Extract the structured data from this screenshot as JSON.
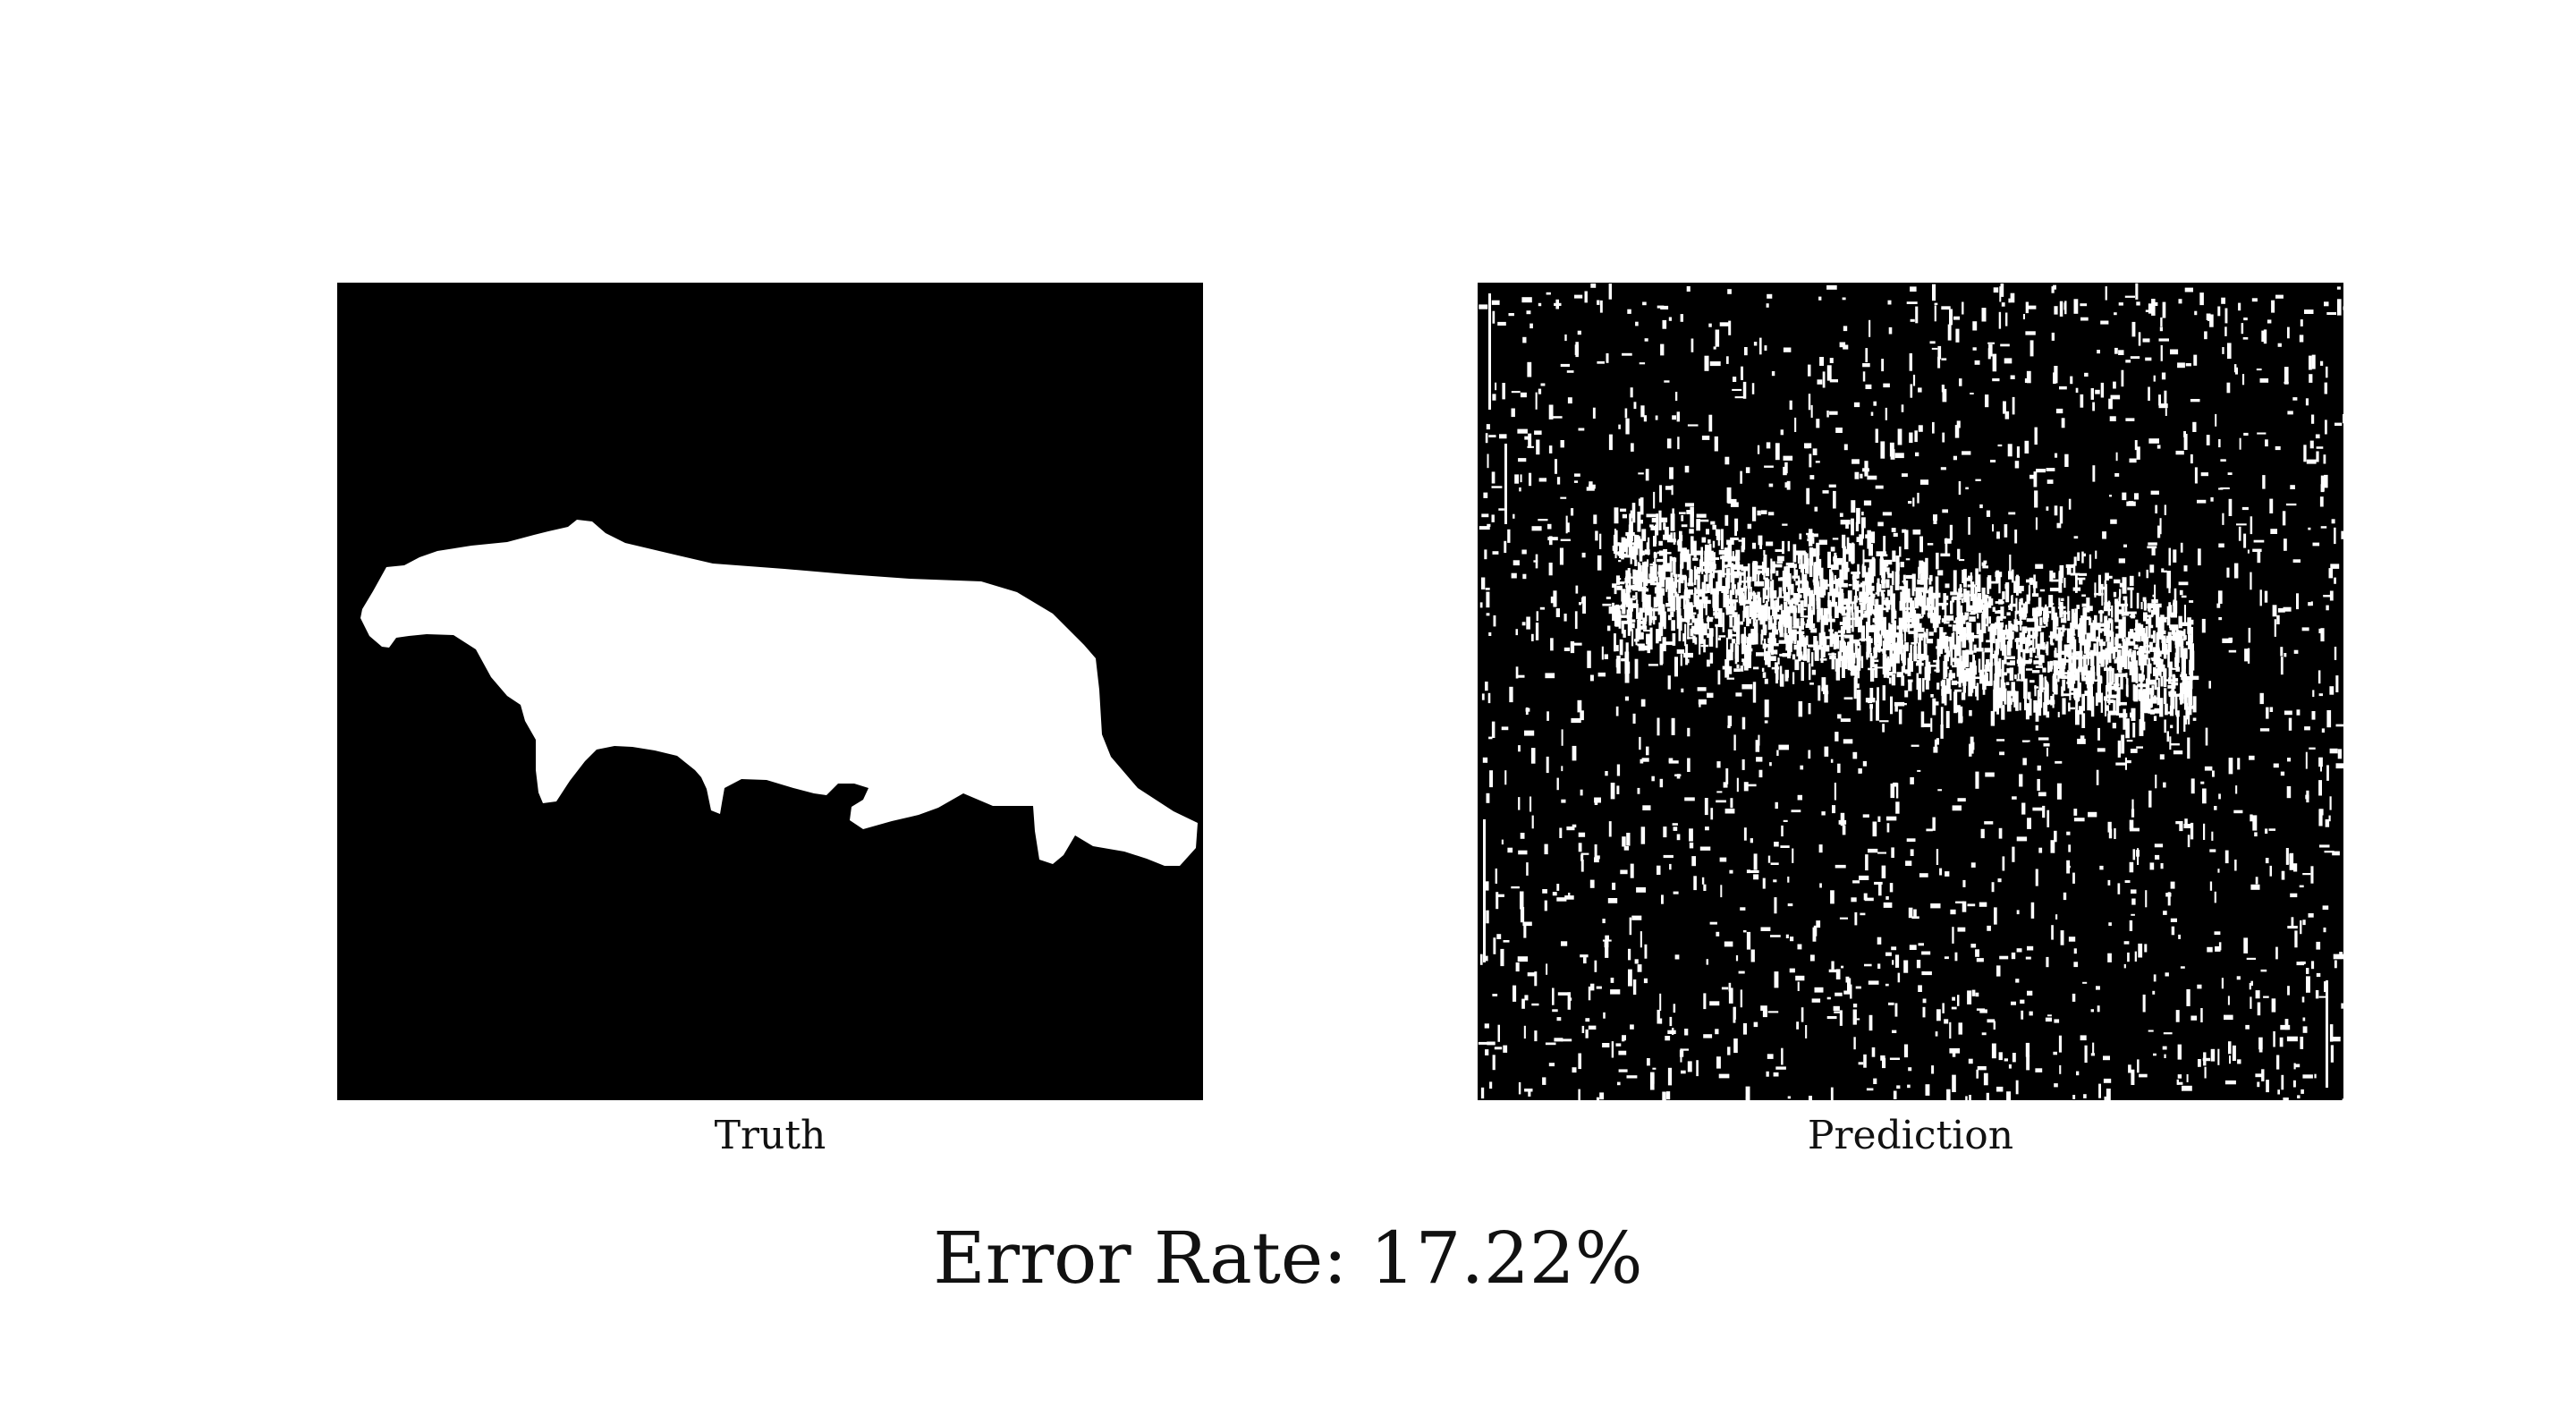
{
  "panels": {
    "truth": {
      "caption": "Truth",
      "image_desc": "binary-mask"
    },
    "prediction": {
      "caption": "Prediction",
      "image_desc": "noisy-binary-mask"
    }
  },
  "error_rate_text": "Error Rate: 17.22%",
  "colors": {
    "background": "#ffffff",
    "mask_foreground": "#ffffff",
    "mask_background": "#000000",
    "text": "#111111"
  }
}
